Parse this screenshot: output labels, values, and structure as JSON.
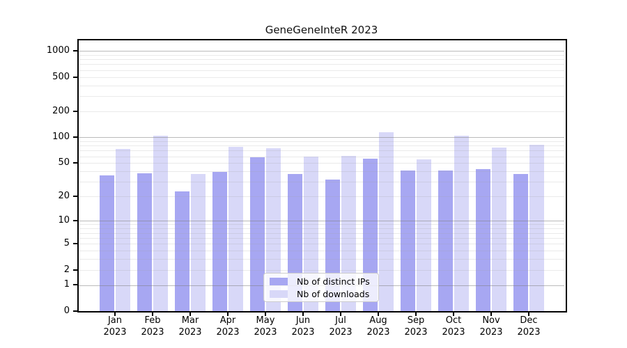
{
  "figure": {
    "title": "GeneGeneInteR 2023"
  },
  "chart_data": {
    "type": "bar",
    "title": "GeneGeneInteR 2023",
    "categories": [
      "Jan 2023",
      "Feb 2023",
      "Mar 2023",
      "Apr 2023",
      "May 2023",
      "Jun 2023",
      "Jul 2023",
      "Aug 2023",
      "Sep 2023",
      "Oct 2023",
      "Nov 2023",
      "Dec 2023"
    ],
    "series": [
      {
        "name": "Nb of distinct IPs",
        "color": "#a7a7f2",
        "values": [
          36,
          38,
          23,
          39,
          58,
          37,
          32,
          56,
          41,
          41,
          42,
          37
        ]
      },
      {
        "name": "Nb of downloads",
        "color": "#d8d8f8",
        "values": [
          73,
          104,
          37,
          78,
          74,
          59,
          61,
          115,
          55,
          105,
          76,
          82
        ]
      }
    ],
    "yaxis": {
      "scale": "log10(value+1)",
      "ticks": [
        0,
        1,
        2,
        5,
        10,
        20,
        50,
        100,
        200,
        500,
        1000
      ],
      "major_grid_at": [
        1,
        10,
        100,
        1000
      ],
      "minor_grid": "2..9 of each decade (2-9, 20-90, 200-900)"
    },
    "xlabel": "",
    "ylabel": "",
    "grid": "horizontal",
    "legend": {
      "position": "bottom-center-inside",
      "entries": [
        "Nb of distinct IPs",
        "Nb of downloads"
      ]
    }
  },
  "colors": {
    "bar_distinct_ips": "#a7a7f2",
    "bar_downloads": "#d8d8f8",
    "grid_major": "rgba(130,130,130,0.55)",
    "grid_minor": "rgba(160,160,160,0.22)",
    "axis": "#000000",
    "legend_background": "rgba(255,255,255,0.8)",
    "legend_border": "#cccccc",
    "background": "#ffffff"
  }
}
